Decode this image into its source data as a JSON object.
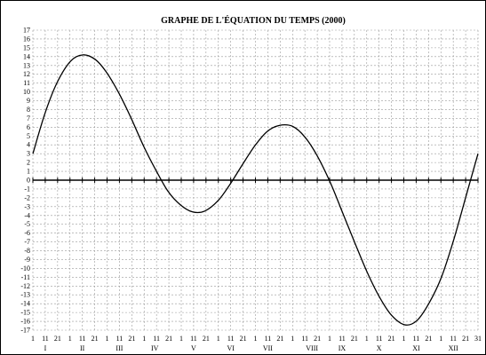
{
  "chart_data": {
    "type": "line",
    "title": "GRAPHE DE L'ÉQUATION DU TEMPS (2000)",
    "xlabel": "",
    "ylabel": "",
    "ylim": [
      -17,
      17
    ],
    "y_ticks": [
      17,
      16,
      15,
      14,
      13,
      12,
      11,
      10,
      9,
      8,
      7,
      6,
      5,
      4,
      3,
      2,
      1,
      0,
      -1,
      -2,
      -3,
      -4,
      -5,
      -6,
      -7,
      -8,
      -9,
      -10,
      -11,
      -12,
      -13,
      -14,
      -15,
      -16,
      -17
    ],
    "x_day_labels": [
      "1",
      "11",
      "21",
      "1",
      "11",
      "21",
      "1",
      "11",
      "21",
      "1",
      "11",
      "21",
      "1",
      "11",
      "21",
      "1",
      "11",
      "21",
      "1",
      "11",
      "21",
      "1",
      "11",
      "21",
      "1",
      "11",
      "21",
      "1",
      "11",
      "21",
      "1",
      "11",
      "21",
      "1",
      "11",
      "21",
      "31"
    ],
    "months": [
      "I",
      "II",
      "III",
      "IV",
      "V",
      "VI",
      "VII",
      "VIII",
      "IX",
      "X",
      "XI",
      "XII"
    ],
    "grid": true,
    "series": [
      {
        "color": "#000000",
        "points": [
          {
            "x": "2000-01-01",
            "y": 3.0
          },
          {
            "x": "2000-01-11",
            "y": 7.6
          },
          {
            "x": "2000-01-21",
            "y": 11.1
          },
          {
            "x": "2000-02-01",
            "y": 13.5
          },
          {
            "x": "2000-02-11",
            "y": 14.2
          },
          {
            "x": "2000-02-21",
            "y": 13.7
          },
          {
            "x": "2000-03-01",
            "y": 12.3
          },
          {
            "x": "2000-03-11",
            "y": 10.0
          },
          {
            "x": "2000-03-21",
            "y": 7.2
          },
          {
            "x": "2000-04-01",
            "y": 3.8
          },
          {
            "x": "2000-04-11",
            "y": 1.1
          },
          {
            "x": "2000-04-21",
            "y": -1.3
          },
          {
            "x": "2000-05-01",
            "y": -2.8
          },
          {
            "x": "2000-05-11",
            "y": -3.6
          },
          {
            "x": "2000-05-21",
            "y": -3.5
          },
          {
            "x": "2000-06-01",
            "y": -2.3
          },
          {
            "x": "2000-06-11",
            "y": -0.4
          },
          {
            "x": "2000-06-21",
            "y": 1.8
          },
          {
            "x": "2000-07-01",
            "y": 3.9
          },
          {
            "x": "2000-07-11",
            "y": 5.5
          },
          {
            "x": "2000-07-21",
            "y": 6.2
          },
          {
            "x": "2000-08-01",
            "y": 6.1
          },
          {
            "x": "2000-08-11",
            "y": 4.9
          },
          {
            "x": "2000-08-21",
            "y": 2.8
          },
          {
            "x": "2000-09-01",
            "y": -0.3
          },
          {
            "x": "2000-09-11",
            "y": -3.7
          },
          {
            "x": "2000-09-21",
            "y": -7.1
          },
          {
            "x": "2000-10-01",
            "y": -10.4
          },
          {
            "x": "2000-10-11",
            "y": -13.2
          },
          {
            "x": "2000-10-21",
            "y": -15.3
          },
          {
            "x": "2000-11-01",
            "y": -16.4
          },
          {
            "x": "2000-11-11",
            "y": -15.9
          },
          {
            "x": "2000-11-21",
            "y": -13.9
          },
          {
            "x": "2000-12-01",
            "y": -11.0
          },
          {
            "x": "2000-12-11",
            "y": -6.8
          },
          {
            "x": "2000-12-21",
            "y": -1.9
          },
          {
            "x": "2000-12-31",
            "y": 3.0
          }
        ]
      }
    ]
  }
}
